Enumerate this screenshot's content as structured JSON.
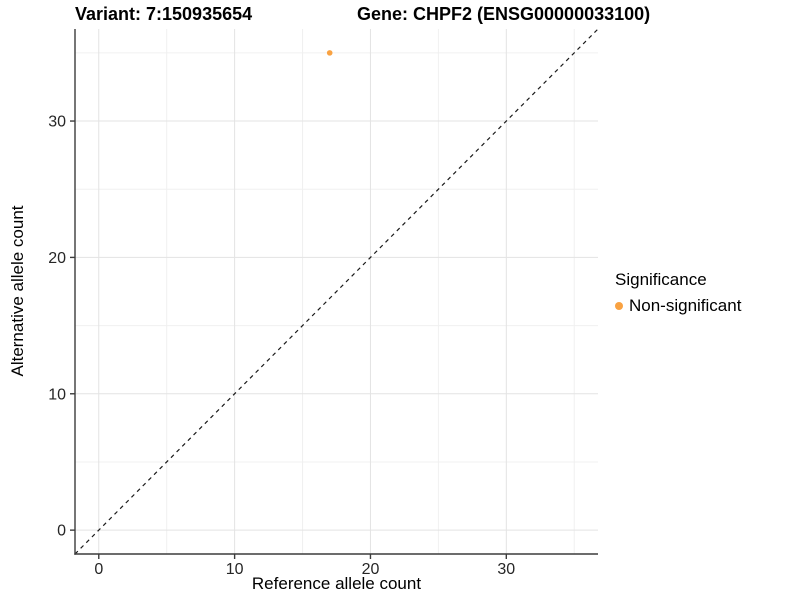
{
  "header": {
    "variant_title": "Variant: 7:150935654",
    "gene_title": "Gene: CHPF2 (ENSG00000033100)"
  },
  "chart_data": {
    "type": "scatter",
    "xlabel": "Reference allele count",
    "ylabel": "Alternative allele count",
    "xlim": [
      -1.75,
      36.75
    ],
    "ylim": [
      -1.75,
      36.75
    ],
    "x_major_ticks": [
      0,
      10,
      20,
      30
    ],
    "y_major_ticks": [
      0,
      10,
      20,
      30
    ],
    "x_minor_ticks": [
      5,
      15,
      25,
      35
    ],
    "y_minor_ticks": [
      5,
      15,
      25,
      35
    ],
    "grid": "major and minor gridlines, light gray on white",
    "reference_line": {
      "type": "identity",
      "equation": "y = x",
      "style": "dashed"
    },
    "series": [
      {
        "name": "Non-significant",
        "color": "#F9A242",
        "points": [
          [
            17,
            35
          ]
        ]
      }
    ],
    "legend": {
      "position": "right",
      "title": "Significance",
      "entries": [
        {
          "label": "Non-significant",
          "color": "#F9A242"
        }
      ]
    }
  },
  "colors": {
    "point_orange": "#F9A242",
    "grid_major": "#E3E3E3",
    "grid_minor": "#F0F0F0",
    "axis_line": "#3C3C3C",
    "dashed_line": "#1A1A1A",
    "tick_text": "#262626"
  }
}
